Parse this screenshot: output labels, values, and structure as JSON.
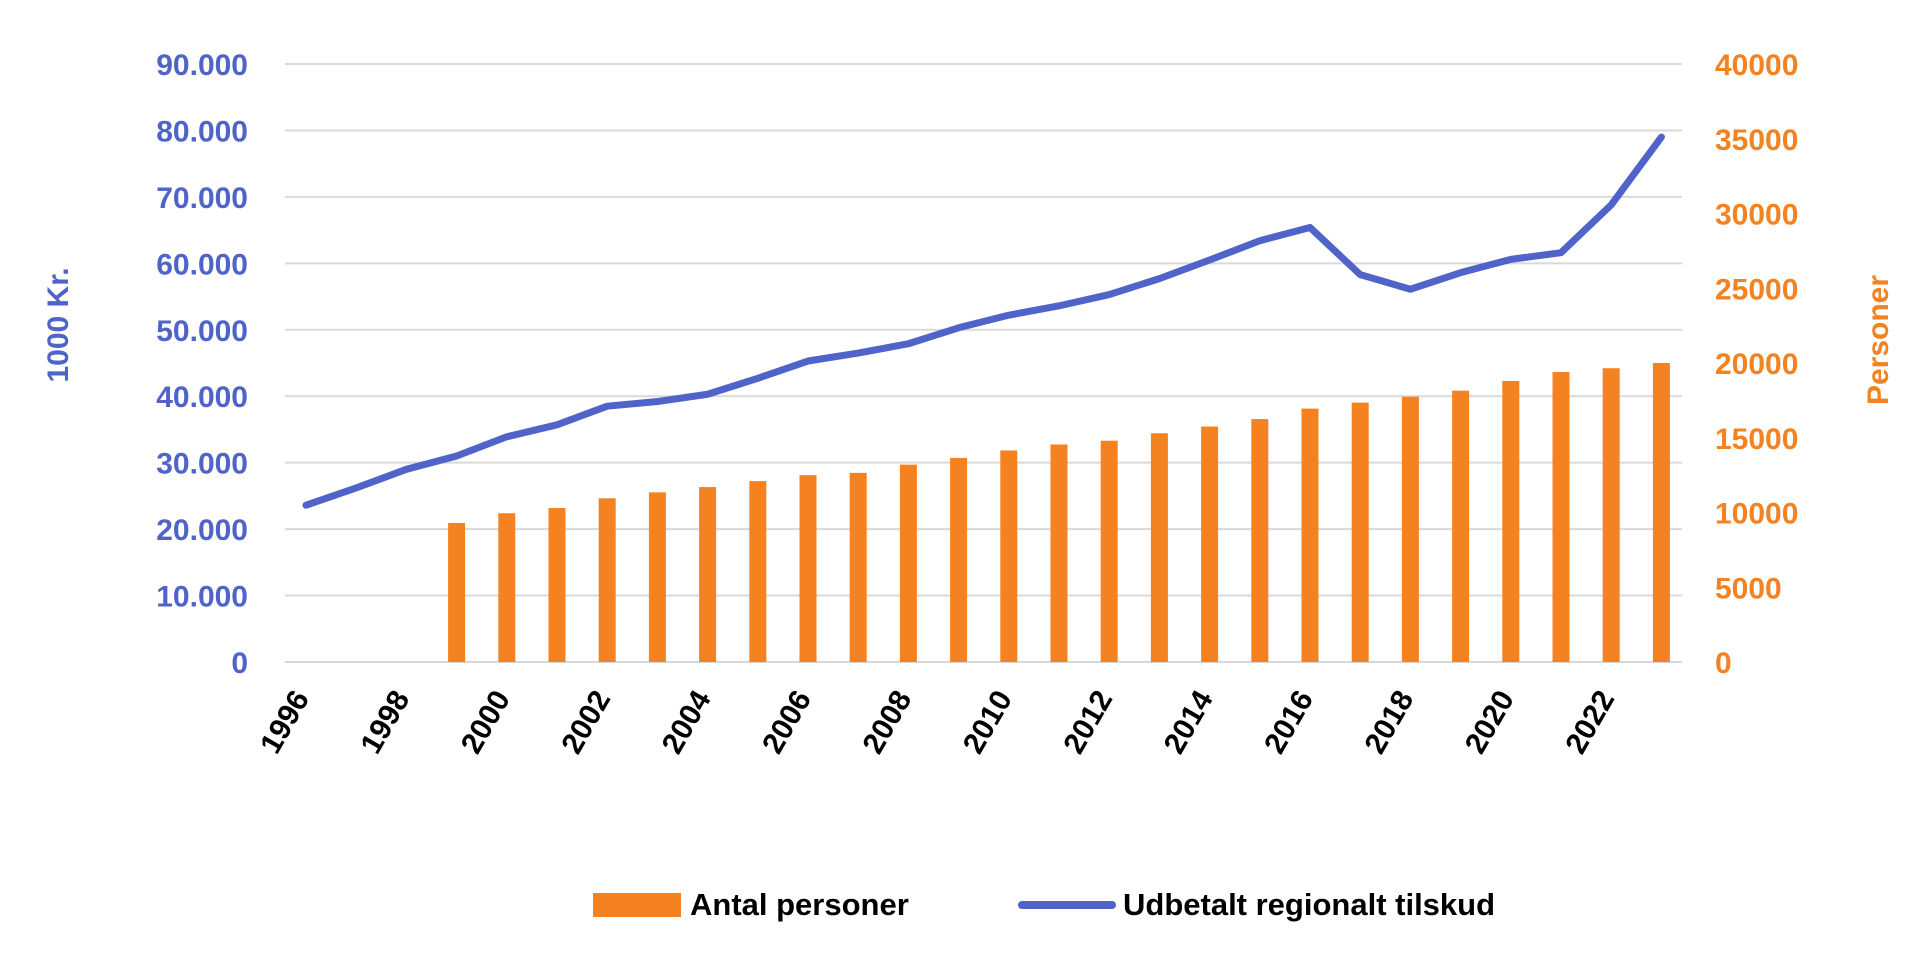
{
  "colors": {
    "line": "#4f63c9",
    "bars": "#f58220",
    "grid": "#d9d9d9",
    "left_axis_text": "#4f63c9",
    "right_axis_text": "#f58220"
  },
  "chart_data": {
    "type": "bar",
    "title": "",
    "x": [
      1996,
      1997,
      1998,
      1999,
      2000,
      2001,
      2002,
      2003,
      2004,
      2005,
      2006,
      2007,
      2008,
      2009,
      2010,
      2011,
      2012,
      2013,
      2014,
      2015,
      2016,
      2017,
      2018,
      2019,
      2020,
      2021,
      2022,
      2023
    ],
    "x_tick_labels": [
      "1996",
      "1998",
      "2000",
      "2002",
      "2004",
      "2006",
      "2008",
      "2010",
      "2012",
      "2014",
      "2016",
      "2018",
      "2020",
      "2022"
    ],
    "ylabel_left": "1000 Kr.",
    "ylabel_right": "Personer",
    "ylim_left": [
      0,
      90000
    ],
    "ylim_right": [
      0,
      40000
    ],
    "left_tick_labels": [
      "0",
      "10.000",
      "20.000",
      "30.000",
      "40.000",
      "50.000",
      "60.000",
      "70.000",
      "80.000",
      "90.000"
    ],
    "right_tick_labels": [
      "0",
      "5000",
      "10000",
      "15000",
      "20000",
      "25000",
      "30000",
      "35000",
      "40000"
    ],
    "grid": true,
    "legend_position": "bottom",
    "series": [
      {
        "name": "Antal personer",
        "type": "bar",
        "axis": "right",
        "values": [
          null,
          null,
          null,
          9300,
          9950,
          10300,
          10950,
          11350,
          11700,
          12100,
          12500,
          12650,
          13200,
          13650,
          14150,
          14550,
          14800,
          15300,
          15750,
          16250,
          16950,
          17350,
          17750,
          18150,
          18800,
          19400,
          19650,
          20000
        ]
      },
      {
        "name": "Udbetalt regionalt tilskud",
        "type": "line",
        "axis": "left",
        "values": [
          23600,
          26200,
          29000,
          31000,
          33900,
          35700,
          38500,
          39200,
          40300,
          42700,
          45300,
          46500,
          47900,
          50300,
          52200,
          53600,
          55300,
          57700,
          60500,
          63400,
          65400,
          58300,
          56100,
          58600,
          60600,
          61600,
          68800,
          79000
        ]
      }
    ]
  }
}
